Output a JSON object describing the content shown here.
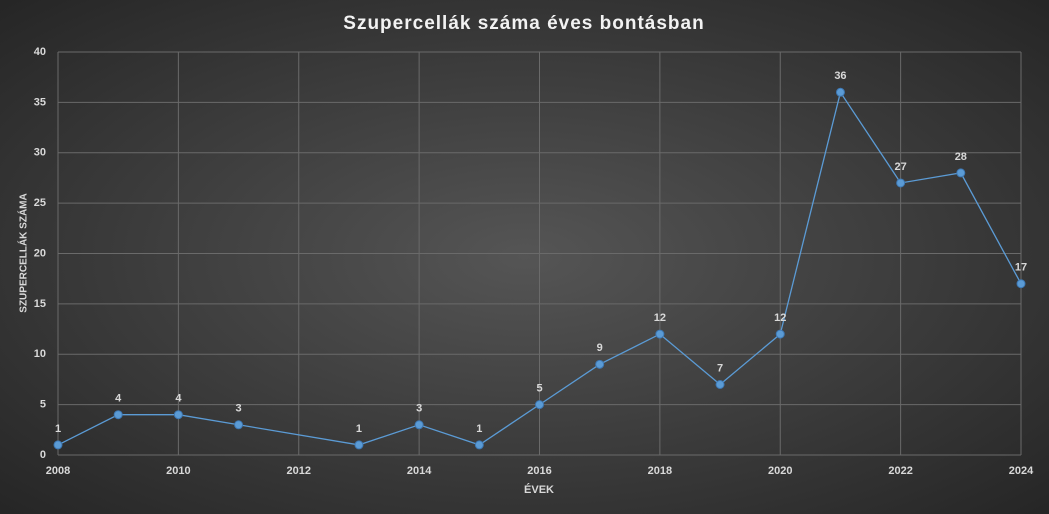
{
  "chart_data": {
    "type": "line",
    "title": "Szupercellák száma éves bontásban",
    "x_label": "ÉVEK",
    "y_label": "SZUPERCELLÁK SZÁMA",
    "x": [
      2008,
      2009,
      2010,
      2011,
      2013,
      2014,
      2015,
      2016,
      2017,
      2018,
      2019,
      2020,
      2021,
      2022,
      2023,
      2024
    ],
    "values": [
      1,
      4,
      4,
      3,
      1,
      3,
      1,
      5,
      9,
      12,
      7,
      12,
      36,
      27,
      28,
      17
    ],
    "color": "#5b9bd5",
    "xlim": [
      2008,
      2024
    ],
    "xticks": [
      2008,
      2010,
      2012,
      2014,
      2016,
      2018,
      2020,
      2022,
      2024
    ],
    "ylim": [
      0,
      40
    ],
    "yticks": [
      0,
      5,
      10,
      15,
      20,
      25,
      30,
      35,
      40
    ],
    "grid": true
  }
}
